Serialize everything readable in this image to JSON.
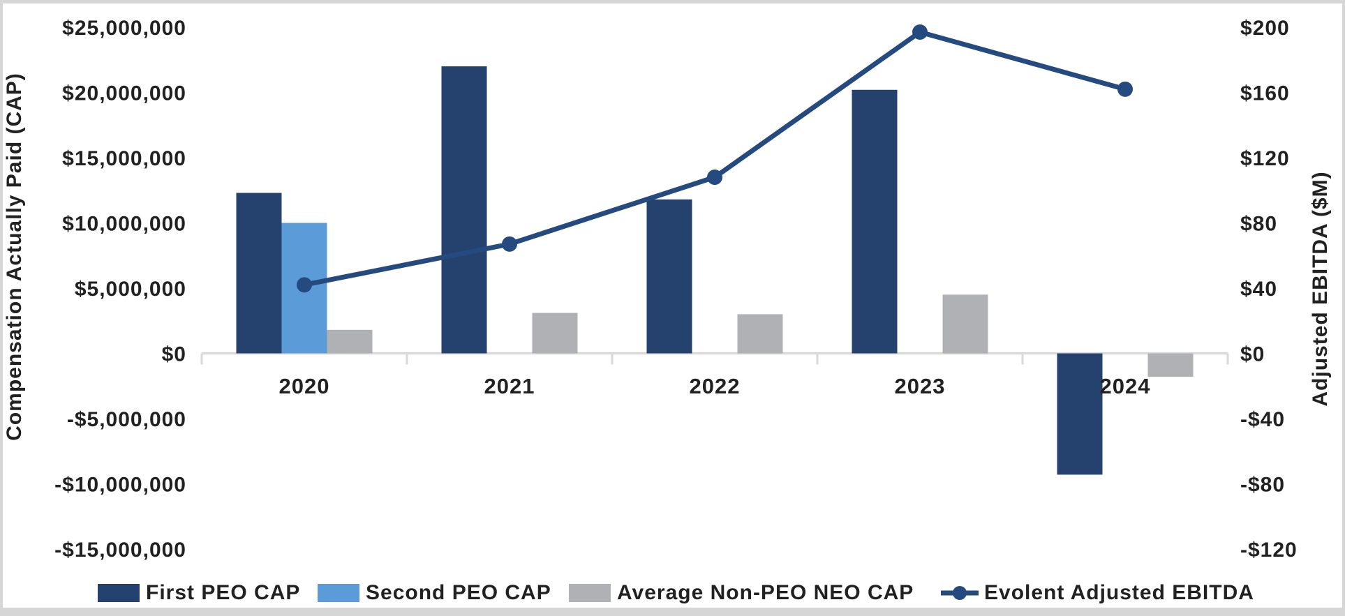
{
  "chart_data": {
    "type": "combo_bar_line",
    "categories": [
      "2020",
      "2021",
      "2022",
      "2023",
      "2024"
    ],
    "bar_series": [
      {
        "name": "First PEO CAP",
        "color": "#24426d",
        "axis": "left",
        "values": [
          12300000,
          22000000,
          11800000,
          20200000,
          -9300000
        ]
      },
      {
        "name": "Second PEO CAP",
        "color": "#5b9bd8",
        "axis": "left",
        "values": [
          10000000,
          null,
          null,
          null,
          null
        ]
      },
      {
        "name": "Average Non-PEO NEO CAP",
        "color": "#b0b1b4",
        "axis": "left",
        "values": [
          1800000,
          3100000,
          3000000,
          4500000,
          -1800000
        ]
      }
    ],
    "line_series": {
      "name": "Evolent Adjusted EBITDA",
      "color": "#254a80",
      "axis": "right",
      "values_millions": [
        42,
        67,
        108,
        197,
        162
      ]
    },
    "y_left": {
      "title": "Compensation Actually Paid (CAP)",
      "max": 25000000,
      "min": -15000000,
      "step": 5000000,
      "tick_labels": [
        "$25,000,000",
        "$20,000,000",
        "$15,000,000",
        "$10,000,000",
        "$5,000,000",
        "$0",
        "-$5,000,000",
        "-$10,000,000",
        "-$15,000,000"
      ]
    },
    "y_right": {
      "title": "Adjusted EBITDA ($M)",
      "max": 200,
      "min": -120,
      "step": 40,
      "tick_labels": [
        "$200",
        "$160",
        "$120",
        "$80",
        "$40",
        "$0",
        "-$40",
        "-$80",
        "-$120"
      ]
    },
    "grid": false,
    "legend_position": "bottom",
    "colors": {
      "axis_line": "#d9d9d9",
      "text": "#212121",
      "background": "#ffffff",
      "frame_border": "#d6d6d6"
    }
  }
}
